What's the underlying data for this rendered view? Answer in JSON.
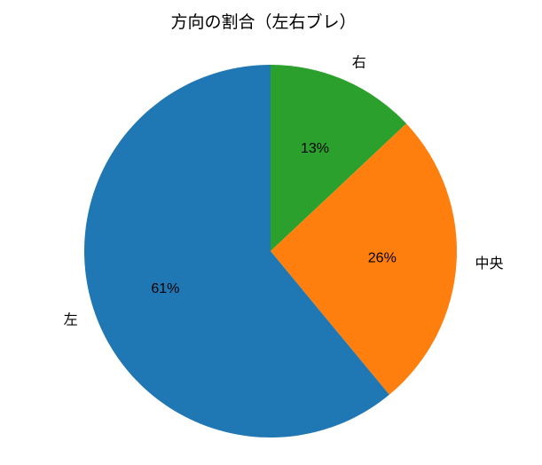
{
  "chart_data": {
    "type": "pie",
    "title": "方向の割合（左右ブレ）",
    "slices": [
      {
        "label": "右",
        "value": 13,
        "pct_label": "13%",
        "color": "#2ca02c"
      },
      {
        "label": "中央",
        "value": 26,
        "pct_label": "26%",
        "color": "#ff7f0e"
      },
      {
        "label": "左",
        "value": 61,
        "pct_label": "61%",
        "color": "#1f77b4"
      }
    ],
    "start_angle": 90,
    "direction": "clockwise",
    "label_distance": 1.1,
    "pct_distance": 0.6,
    "legend": "none",
    "background_color": "#ffffff",
    "text_color": "#000000"
  }
}
